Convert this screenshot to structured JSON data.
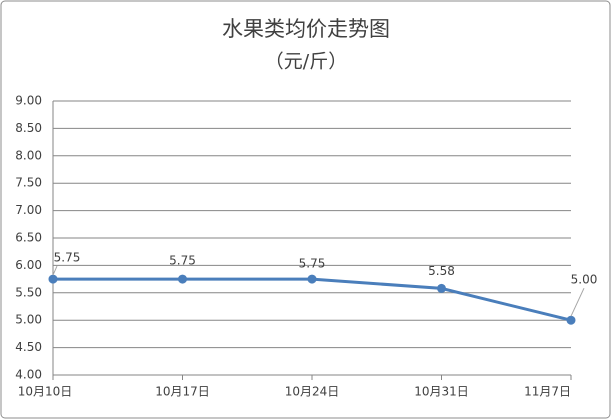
{
  "chart_data": {
    "type": "line",
    "title": "水果类均价走势图",
    "subtitle": "（元/斤）",
    "categories": [
      "10月10日",
      "10月17日",
      "10月24日",
      "10月31日",
      "11月7日"
    ],
    "series": [
      {
        "color": "#4a7ebb",
        "values": [
          5.75,
          5.75,
          5.75,
          5.58,
          5
        ],
        "value_labels": [
          "5.75",
          "5.75",
          "5.75",
          "5.58",
          "5.00"
        ]
      }
    ],
    "ylim": [
      4,
      9
    ],
    "yticks": [
      {
        "value": 4,
        "label": "4.00"
      },
      {
        "value": 4.5,
        "label": "4.50"
      },
      {
        "value": 5,
        "label": "5.00"
      },
      {
        "value": 5.5,
        "label": "5.50"
      },
      {
        "value": 6,
        "label": "6.00"
      },
      {
        "value": 6.5,
        "label": "6.50"
      },
      {
        "value": 7,
        "label": "7.00"
      },
      {
        "value": 7.5,
        "label": "7.50"
      },
      {
        "value": 8,
        "label": "8.00"
      },
      {
        "value": 8.5,
        "label": "8.50"
      },
      {
        "value": 9,
        "label": "9.00"
      }
    ],
    "grid": true
  }
}
